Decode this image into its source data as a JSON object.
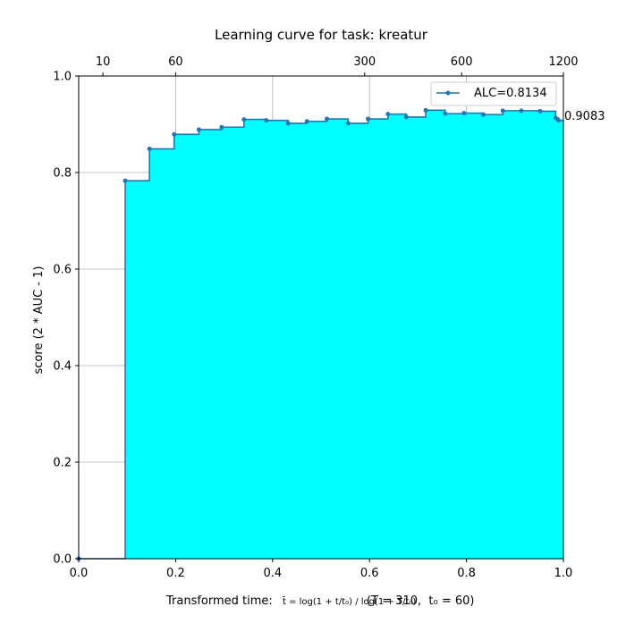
{
  "chart_data": {
    "type": "area",
    "title": "Learning curve for task: kreatur",
    "xlabel_prefix": "Transformed time: ",
    "xlabel_formula": "t̃ = log(1 + t/t₀) / log(1 + T/t₀)",
    "xlabel_params": "(T = 310,  t₀ = 60)",
    "ylabel": "score (2 * AUC - 1)",
    "xlim": [
      0,
      1
    ],
    "ylim": [
      0,
      1
    ],
    "x_ticks": [
      "0.0",
      "0.2",
      "0.4",
      "0.6",
      "0.8",
      "1.0"
    ],
    "y_ticks": [
      "0.0",
      "0.2",
      "0.4",
      "0.6",
      "0.8",
      "1.0"
    ],
    "top_axis_ticks": [
      {
        "label": "10",
        "at": 0.05
      },
      {
        "label": "60",
        "at": 0.2
      },
      {
        "label": "300",
        "at": 0.59
      },
      {
        "label": "600",
        "at": 0.79
      },
      {
        "label": "1200",
        "at": 1.0
      }
    ],
    "grid": true,
    "legend": {
      "label": "ALC=0.8134",
      "placement": "top-right"
    },
    "final_score_label": "0.9083",
    "colors": {
      "line": "#1f77b4",
      "fill": "#00ffff",
      "grid": "#b0b0b0"
    },
    "x": [
      0.0,
      0.096,
      0.146,
      0.197,
      0.248,
      0.295,
      0.341,
      0.387,
      0.432,
      0.471,
      0.512,
      0.556,
      0.597,
      0.638,
      0.676,
      0.716,
      0.756,
      0.795,
      0.835,
      0.875,
      0.913,
      0.952,
      0.984,
      0.99
    ],
    "y": [
      0.0,
      0.783,
      0.849,
      0.879,
      0.889,
      0.894,
      0.91,
      0.908,
      0.902,
      0.906,
      0.911,
      0.902,
      0.911,
      0.921,
      0.915,
      0.929,
      0.922,
      0.923,
      0.92,
      0.928,
      0.928,
      0.927,
      0.913,
      0.908
    ]
  }
}
